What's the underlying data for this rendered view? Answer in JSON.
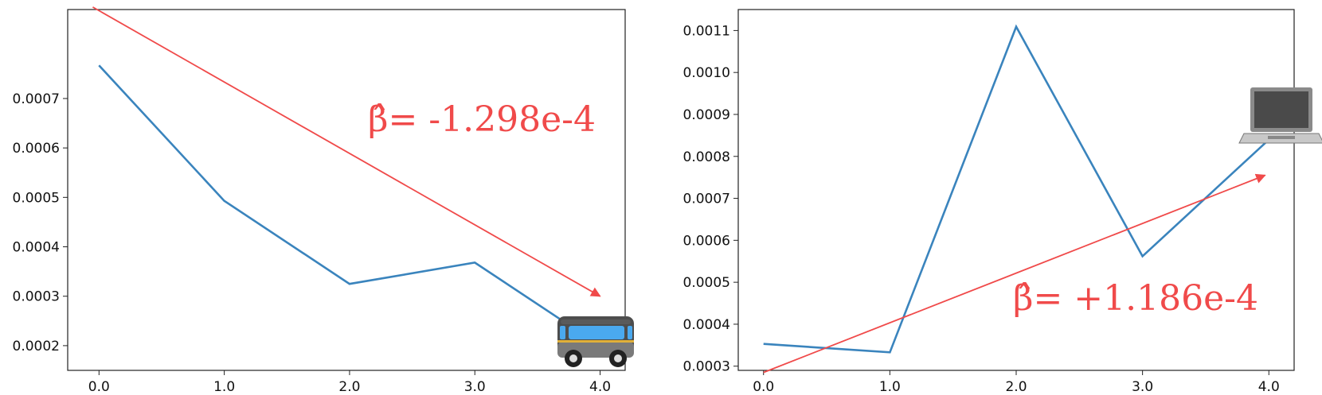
{
  "chart_data": [
    {
      "type": "line",
      "x": [
        0.0,
        1.0,
        2.0,
        3.0,
        4.0
      ],
      "x_tick_labels": [
        "0.0",
        "1.0",
        "2.0",
        "3.0",
        "4.0"
      ],
      "y_tick_values": [
        0.0002,
        0.0003,
        0.0004,
        0.0005,
        0.0006,
        0.0007
      ],
      "y_tick_labels": [
        "0.0002",
        "0.0003",
        "0.0004",
        "0.0005",
        "0.0006",
        "0.0007"
      ],
      "xlim": [
        -0.25,
        4.2
      ],
      "ylim": [
        0.00015,
        0.00088
      ],
      "series": [
        {
          "values": [
            0.000767,
            0.000493,
            0.000325,
            0.000368,
            0.0002
          ],
          "color": "#3a84bd"
        }
      ],
      "trend_arrow": {
        "x": [
          -0.05,
          4.0
        ],
        "y": [
          0.000885,
          0.0003
        ],
        "color": "#f04a4a"
      },
      "annotation": "β̂= -1.298e-4",
      "icon": "bus-icon",
      "grid": false
    },
    {
      "type": "line",
      "x": [
        0.0,
        1.0,
        2.0,
        3.0,
        4.0
      ],
      "x_tick_labels": [
        "0.0",
        "1.0",
        "2.0",
        "3.0",
        "4.0"
      ],
      "y_tick_values": [
        0.0003,
        0.0004,
        0.0005,
        0.0006,
        0.0007,
        0.0008,
        0.0009,
        0.001,
        0.0011
      ],
      "y_tick_labels": [
        "0.0003",
        "0.0004",
        "0.0005",
        "0.0006",
        "0.0007",
        "0.0008",
        "0.0009",
        "0.0010",
        "0.0011"
      ],
      "xlim": [
        -0.2,
        4.2
      ],
      "ylim": [
        0.00029,
        0.00115
      ],
      "series": [
        {
          "values": [
            0.000353,
            0.000333,
            0.001109,
            0.000562,
            0.00084
          ],
          "color": "#3a84bd"
        }
      ],
      "trend_arrow": {
        "x": [
          0.0,
          3.97
        ],
        "y": [
          0.000285,
          0.000755
        ],
        "color": "#f04a4a"
      },
      "annotation": "β̂= +1.186e-4",
      "icon": "laptop-icon",
      "grid": false
    }
  ]
}
